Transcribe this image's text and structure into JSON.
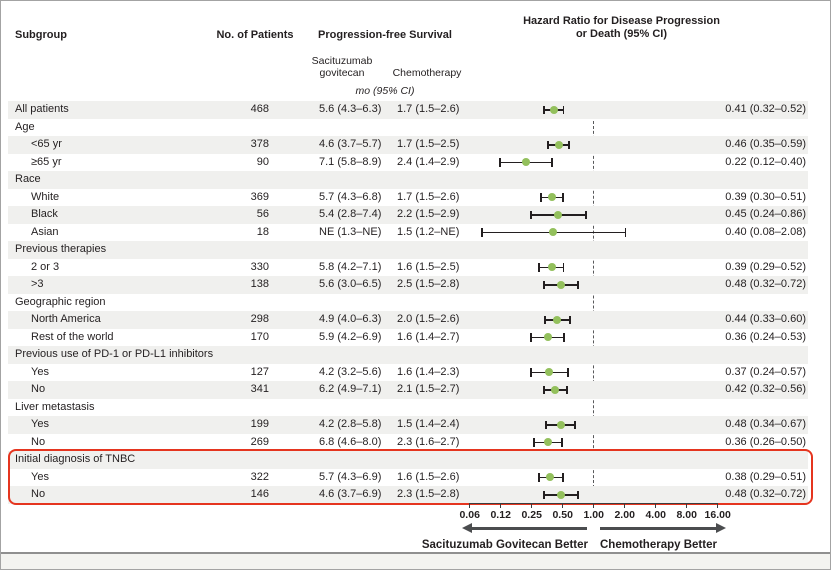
{
  "header": {
    "subgroup": "Subgroup",
    "patients": "No. of Patients",
    "pfs": "Progression-free Survival",
    "hr_line1": "Hazard Ratio for Disease Progression",
    "hr_line2": "or Death (95% CI)",
    "sg_arm_line1": "Sacituzumab",
    "sg_arm_line2": "govitecan",
    "chemo_arm": "Chemotherapy",
    "units": "mo (95% CI)"
  },
  "axis": {
    "tick_labels": [
      "0.06",
      "0.12",
      "0.25",
      "0.50",
      "1.00",
      "2.00",
      "4.00",
      "8.00",
      "16.00"
    ],
    "left_better": "Sacituzumab Govitecan Better",
    "right_better": "Chemotherapy Better",
    "reference_line": 1.0,
    "scale": "log2"
  },
  "colors": {
    "marker_green": "#93c05c",
    "stripe_gray": "#f0f0ee",
    "highlight_red": "#e5351f",
    "text": "#231f20"
  },
  "rows": [
    {
      "label": "All patients",
      "indent": false,
      "n": "468",
      "sg": "5.6 (4.3–6.3)",
      "chemo": "1.7 (1.5–2.6)",
      "hr_text": "0.41 (0.32–0.52)",
      "hr": 0.41,
      "lo": 0.32,
      "hi": 0.52
    },
    {
      "label": "Age",
      "indent": false
    },
    {
      "label": "<65 yr",
      "indent": true,
      "n": "378",
      "sg": "4.6 (3.7–5.7)",
      "chemo": "1.7 (1.5–2.5)",
      "hr_text": "0.46 (0.35–0.59)",
      "hr": 0.46,
      "lo": 0.35,
      "hi": 0.59
    },
    {
      "label": "≥65 yr",
      "indent": true,
      "n": "90",
      "sg": "7.1 (5.8–8.9)",
      "chemo": "2.4 (1.4–2.9)",
      "hr_text": "0.22 (0.12–0.40)",
      "hr": 0.22,
      "lo": 0.12,
      "hi": 0.4
    },
    {
      "label": "Race",
      "indent": false
    },
    {
      "label": "White",
      "indent": true,
      "n": "369",
      "sg": "5.7 (4.3–6.8)",
      "chemo": "1.7 (1.5–2.6)",
      "hr_text": "0.39 (0.30–0.51)",
      "hr": 0.39,
      "lo": 0.3,
      "hi": 0.51
    },
    {
      "label": "Black",
      "indent": true,
      "n": "56",
      "sg": "5.4 (2.8–7.4)",
      "chemo": "2.2 (1.5–2.9)",
      "hr_text": "0.45 (0.24–0.86)",
      "hr": 0.45,
      "lo": 0.24,
      "hi": 0.86
    },
    {
      "label": "Asian",
      "indent": true,
      "n": "18",
      "sg": "NE (1.3–NE)",
      "chemo": "1.5 (1.2–NE)",
      "hr_text": "0.40 (0.08–2.08)",
      "hr": 0.4,
      "lo": 0.08,
      "hi": 2.08
    },
    {
      "label": "Previous therapies",
      "indent": false
    },
    {
      "label": "2 or 3",
      "indent": true,
      "n": "330",
      "sg": "5.8 (4.2–7.1)",
      "chemo": "1.6 (1.5–2.5)",
      "hr_text": "0.39 (0.29–0.52)",
      "hr": 0.39,
      "lo": 0.29,
      "hi": 0.52
    },
    {
      "label": ">3",
      "indent": true,
      "n": "138",
      "sg": "5.6 (3.0–6.5)",
      "chemo": "2.5 (1.5–2.8)",
      "hr_text": "0.48 (0.32–0.72)",
      "hr": 0.48,
      "lo": 0.32,
      "hi": 0.72
    },
    {
      "label": "Geographic region",
      "indent": false
    },
    {
      "label": "North America",
      "indent": true,
      "n": "298",
      "sg": "4.9 (4.0–6.3)",
      "chemo": "2.0 (1.5–2.6)",
      "hr_text": "0.44 (0.33–0.60)",
      "hr": 0.44,
      "lo": 0.33,
      "hi": 0.6
    },
    {
      "label": "Rest of the world",
      "indent": true,
      "n": "170",
      "sg": "5.9 (4.2–6.9)",
      "chemo": "1.6 (1.4–2.7)",
      "hr_text": "0.36 (0.24–0.53)",
      "hr": 0.36,
      "lo": 0.24,
      "hi": 0.53
    },
    {
      "label": "Previous use of PD-1 or PD-L1 inhibitors",
      "indent": false
    },
    {
      "label": "Yes",
      "indent": true,
      "n": "127",
      "sg": "4.2 (3.2–5.6)",
      "chemo": "1.6 (1.4–2.3)",
      "hr_text": "0.37 (0.24–0.57)",
      "hr": 0.37,
      "lo": 0.24,
      "hi": 0.57
    },
    {
      "label": "No",
      "indent": true,
      "n": "341",
      "sg": "6.2 (4.9–7.1)",
      "chemo": "2.1 (1.5–2.7)",
      "hr_text": "0.42 (0.32–0.56)",
      "hr": 0.42,
      "lo": 0.32,
      "hi": 0.56
    },
    {
      "label": "Liver metastasis",
      "indent": false
    },
    {
      "label": "Yes",
      "indent": true,
      "n": "199",
      "sg": "4.2 (2.8–5.8)",
      "chemo": "1.5 (1.4–2.4)",
      "hr_text": "0.48 (0.34–0.67)",
      "hr": 0.48,
      "lo": 0.34,
      "hi": 0.67
    },
    {
      "label": "No",
      "indent": true,
      "n": "269",
      "sg": "6.8 (4.6–8.0)",
      "chemo": "2.3 (1.6–2.7)",
      "hr_text": "0.36 (0.26–0.50)",
      "hr": 0.36,
      "lo": 0.26,
      "hi": 0.5
    },
    {
      "label": "Initial diagnosis of TNBC",
      "indent": false
    },
    {
      "label": "Yes",
      "indent": true,
      "n": "322",
      "sg": "5.7 (4.3–6.9)",
      "chemo": "1.6 (1.5–2.6)",
      "hr_text": "0.38 (0.29–0.51)",
      "hr": 0.38,
      "lo": 0.29,
      "hi": 0.51
    },
    {
      "label": "No",
      "indent": true,
      "n": "146",
      "sg": "4.6 (3.7–6.9)",
      "chemo": "2.3 (1.5–2.8)",
      "hr_text": "0.48 (0.32–0.72)",
      "hr": 0.48,
      "lo": 0.32,
      "hi": 0.72
    }
  ],
  "chart_data": {
    "type": "scatter",
    "subtype": "forest-plot",
    "title": "Hazard Ratio for Disease Progression or Death (95% CI)",
    "x_scale": "log2",
    "x_ticks": [
      0.06,
      0.12,
      0.25,
      0.5,
      1.0,
      2.0,
      4.0,
      8.0,
      16.0
    ],
    "reference_line": 1.0,
    "categories": [
      "All patients",
      "<65 yr",
      "≥65 yr",
      "White",
      "Black",
      "Asian",
      "2 or 3",
      ">3",
      "North America",
      "Rest of the world",
      "PD-1/PD-L1 Yes",
      "PD-1/PD-L1 No",
      "Liver metastasis Yes",
      "Liver metastasis No",
      "Initial TNBC Yes",
      "Initial TNBC No"
    ],
    "series": [
      {
        "name": "Hazard ratio",
        "values": [
          0.41,
          0.46,
          0.22,
          0.39,
          0.45,
          0.4,
          0.39,
          0.48,
          0.44,
          0.36,
          0.37,
          0.42,
          0.48,
          0.36,
          0.38,
          0.48
        ]
      },
      {
        "name": "CI lower",
        "values": [
          0.32,
          0.35,
          0.12,
          0.3,
          0.24,
          0.08,
          0.29,
          0.32,
          0.33,
          0.24,
          0.24,
          0.32,
          0.34,
          0.26,
          0.29,
          0.32
        ]
      },
      {
        "name": "CI upper",
        "values": [
          0.52,
          0.59,
          0.4,
          0.51,
          0.86,
          2.08,
          0.52,
          0.72,
          0.6,
          0.53,
          0.57,
          0.56,
          0.67,
          0.5,
          0.51,
          0.72
        ]
      }
    ],
    "annotations": [
      "Sacituzumab Govitecan Better (left of 1.00)",
      "Chemotherapy Better (right of 1.00)"
    ],
    "highlighted_subgroup": "Initial diagnosis of TNBC"
  }
}
